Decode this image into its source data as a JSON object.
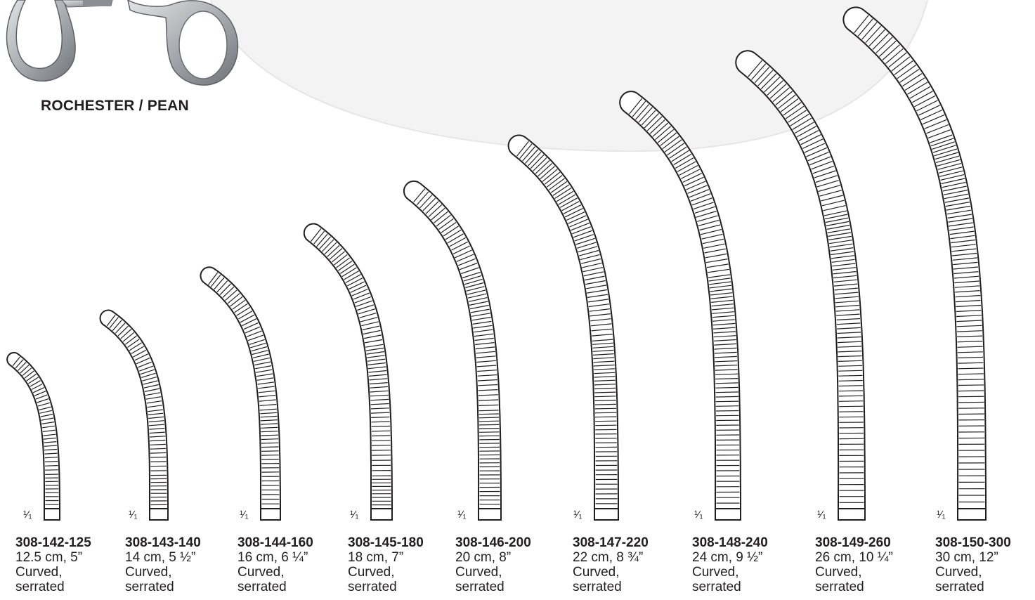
{
  "title": "ROCHESTER / PEAN",
  "scale_text": "¹⁄₁",
  "colors": {
    "ink": "#231f20",
    "bg_arc": "#f2f2f2",
    "handle": "#b8bcbf",
    "handle_shadow": "#7e8286"
  },
  "items": [
    {
      "code": "308-142-125",
      "size": "12.5 cm, 5”",
      "line1": "Curved,",
      "line2": "serrated",
      "length_cm": 12.5
    },
    {
      "code": "308-143-140",
      "size": "14 cm, 5 ½”",
      "line1": "Curved,",
      "line2": "serrated",
      "length_cm": 14
    },
    {
      "code": "308-144-160",
      "size": "16 cm, 6 ¼”",
      "line1": "Curved,",
      "line2": "serrated",
      "length_cm": 16
    },
    {
      "code": "308-145-180",
      "size": "18 cm, 7”",
      "line1": "Curved,",
      "line2": "serrated",
      "length_cm": 18
    },
    {
      "code": "308-146-200",
      "size": "20 cm, 8”",
      "line1": "Curved,",
      "line2": "serrated",
      "length_cm": 20
    },
    {
      "code": "308-147-220",
      "size": "22 cm, 8 ¾”",
      "line1": "Curved,",
      "line2": "serrated",
      "length_cm": 22
    },
    {
      "code": "308-148-240",
      "size": "24 cm, 9 ½”",
      "line1": "Curved,",
      "line2": "serrated",
      "length_cm": 24
    },
    {
      "code": "308-149-260",
      "size": "26 cm, 10 ¼”",
      "line1": "Curved,",
      "line2": "serrated",
      "length_cm": 26
    },
    {
      "code": "308-150-300",
      "size": "30 cm, 12”",
      "line1": "Curved,",
      "line2": "serrated",
      "length_cm": 30
    }
  ]
}
